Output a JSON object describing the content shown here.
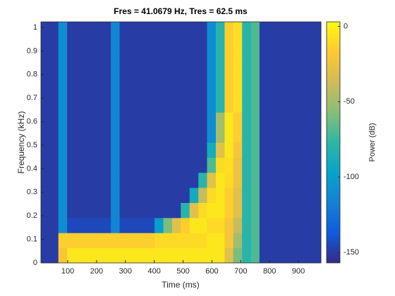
{
  "chart_data": {
    "type": "heatmap",
    "title": "Fres = 41.0679 Hz, Tres = 62.5 ms",
    "xlabel": "Time (ms)",
    "ylabel": "Frequency (kHz)",
    "colorbar_label": "Power (dB)",
    "xlim": [
      7,
      978
    ],
    "ylim": [
      0,
      1.024
    ],
    "xticks": [
      100,
      200,
      300,
      400,
      500,
      600,
      700,
      800,
      900
    ],
    "yticks": [
      0,
      0.1,
      0.2,
      0.3,
      0.4,
      0.5,
      0.6,
      0.7,
      0.8,
      0.9,
      1
    ],
    "zlim": [
      -157,
      3
    ],
    "zticks": [
      -150,
      -100,
      -50,
      0
    ],
    "x": [
      22,
      52,
      83,
      113,
      143,
      174,
      204,
      234,
      265,
      295,
      325,
      356,
      386,
      416,
      447,
      477,
      507,
      538,
      568,
      598,
      629,
      659,
      689,
      720,
      750,
      780,
      811,
      841,
      871,
      902,
      932,
      962
    ],
    "y": [
      0.032,
      0.096,
      0.16,
      0.224,
      0.288,
      0.352,
      0.416,
      0.48,
      0.544,
      0.608,
      0.672,
      0.736,
      0.8,
      0.864,
      0.928,
      0.992
    ],
    "z": [
      [
        -150,
        -150,
        -20,
        -5,
        -5,
        -5,
        -5,
        -5,
        -5,
        -5,
        -5,
        -5,
        -5,
        -5,
        -5,
        -5,
        -5,
        -5,
        -5,
        -5,
        -5,
        -30,
        -60,
        -80,
        -70,
        -150,
        -150,
        -150,
        -150,
        -150,
        -150,
        -150
      ],
      [
        -150,
        -150,
        -15,
        -15,
        -15,
        -15,
        -15,
        -15,
        -15,
        -15,
        -15,
        -15,
        -15,
        -10,
        -10,
        -10,
        -10,
        -10,
        -10,
        -5,
        -5,
        -20,
        -50,
        -80,
        -70,
        -150,
        -150,
        -150,
        -150,
        -150,
        -150,
        -150
      ],
      [
        -150,
        -150,
        -110,
        -145,
        -145,
        -145,
        -145,
        -145,
        -115,
        -145,
        -145,
        -145,
        -145,
        -100,
        -60,
        -30,
        -15,
        -5,
        -5,
        -10,
        -10,
        -20,
        -40,
        -80,
        -70,
        -150,
        -150,
        -150,
        -150,
        -150,
        -150,
        -150
      ],
      [
        -150,
        -150,
        -110,
        -150,
        -150,
        -150,
        -150,
        -150,
        -115,
        -150,
        -150,
        -150,
        -150,
        -150,
        -150,
        -150,
        -80,
        -30,
        -10,
        -5,
        -5,
        -15,
        -30,
        -80,
        -70,
        -150,
        -150,
        -150,
        -150,
        -150,
        -150,
        -150
      ],
      [
        -150,
        -150,
        -110,
        -150,
        -150,
        -150,
        -150,
        -150,
        -115,
        -150,
        -150,
        -150,
        -150,
        -150,
        -150,
        -150,
        -150,
        -90,
        -40,
        -10,
        -5,
        -15,
        -30,
        -80,
        -70,
        -150,
        -150,
        -150,
        -150,
        -150,
        -150,
        -150
      ],
      [
        -150,
        -150,
        -110,
        -150,
        -150,
        -150,
        -150,
        -150,
        -115,
        -150,
        -150,
        -150,
        -150,
        -150,
        -150,
        -150,
        -150,
        -150,
        -80,
        -30,
        -5,
        -10,
        -25,
        -80,
        -70,
        -150,
        -150,
        -150,
        -150,
        -150,
        -150,
        -150
      ],
      [
        -150,
        -150,
        -110,
        -150,
        -150,
        -150,
        -150,
        -150,
        -115,
        -150,
        -150,
        -150,
        -150,
        -150,
        -150,
        -150,
        -150,
        -150,
        -150,
        -70,
        -10,
        -8,
        -25,
        -80,
        -70,
        -150,
        -150,
        -150,
        -150,
        -150,
        -150,
        -150
      ],
      [
        -150,
        -150,
        -110,
        -150,
        -150,
        -150,
        -150,
        -150,
        -115,
        -150,
        -150,
        -150,
        -150,
        -150,
        -150,
        -150,
        -150,
        -150,
        -150,
        -90,
        -30,
        -5,
        -20,
        -80,
        -70,
        -150,
        -150,
        -150,
        -150,
        -150,
        -150,
        -150
      ],
      [
        -150,
        -150,
        -110,
        -150,
        -150,
        -150,
        -150,
        -150,
        -115,
        -150,
        -150,
        -150,
        -150,
        -150,
        -150,
        -150,
        -150,
        -150,
        -150,
        -110,
        -50,
        -5,
        -15,
        -80,
        -70,
        -150,
        -150,
        -150,
        -150,
        -150,
        -150,
        -150
      ],
      [
        -150,
        -150,
        -110,
        -150,
        -150,
        -150,
        -150,
        -150,
        -115,
        -150,
        -150,
        -150,
        -150,
        -150,
        -150,
        -150,
        -150,
        -150,
        -150,
        -110,
        -50,
        -5,
        -15,
        -80,
        -70,
        -150,
        -150,
        -150,
        -150,
        -150,
        -150,
        -150
      ],
      [
        -150,
        -150,
        -110,
        -150,
        -150,
        -150,
        -150,
        -150,
        -115,
        -150,
        -150,
        -150,
        -150,
        -150,
        -150,
        -150,
        -150,
        -150,
        -150,
        -110,
        -80,
        -15,
        -8,
        -80,
        -70,
        -150,
        -150,
        -150,
        -150,
        -150,
        -150,
        -150
      ],
      [
        -150,
        -150,
        -110,
        -150,
        -150,
        -150,
        -150,
        -150,
        -115,
        -150,
        -150,
        -150,
        -150,
        -150,
        -150,
        -150,
        -150,
        -150,
        -150,
        -110,
        -80,
        -15,
        -8,
        -80,
        -70,
        -150,
        -150,
        -150,
        -150,
        -150,
        -150,
        -150
      ],
      [
        -150,
        -150,
        -110,
        -150,
        -150,
        -150,
        -150,
        -150,
        -115,
        -150,
        -150,
        -150,
        -150,
        -150,
        -150,
        -150,
        -150,
        -150,
        -150,
        -110,
        -80,
        -15,
        -8,
        -80,
        -70,
        -150,
        -150,
        -150,
        -150,
        -150,
        -150,
        -150
      ],
      [
        -150,
        -150,
        -110,
        -150,
        -150,
        -150,
        -150,
        -150,
        -115,
        -150,
        -150,
        -150,
        -150,
        -150,
        -150,
        -150,
        -150,
        -150,
        -150,
        -110,
        -80,
        -15,
        -8,
        -80,
        -70,
        -150,
        -150,
        -150,
        -150,
        -150,
        -150,
        -150
      ],
      [
        -150,
        -150,
        -110,
        -150,
        -150,
        -150,
        -150,
        -150,
        -115,
        -150,
        -150,
        -150,
        -150,
        -150,
        -150,
        -150,
        -150,
        -150,
        -150,
        -110,
        -80,
        -15,
        -8,
        -80,
        -70,
        -150,
        -150,
        -150,
        -150,
        -150,
        -150,
        -150
      ],
      [
        -150,
        -150,
        -110,
        -150,
        -150,
        -150,
        -150,
        -150,
        -115,
        -150,
        -150,
        -150,
        -150,
        -150,
        -150,
        -150,
        -150,
        -150,
        -150,
        -110,
        -80,
        -15,
        -8,
        -80,
        -70,
        -150,
        -150,
        -150,
        -150,
        -150,
        -150,
        -150
      ]
    ],
    "colormap": "parula"
  }
}
